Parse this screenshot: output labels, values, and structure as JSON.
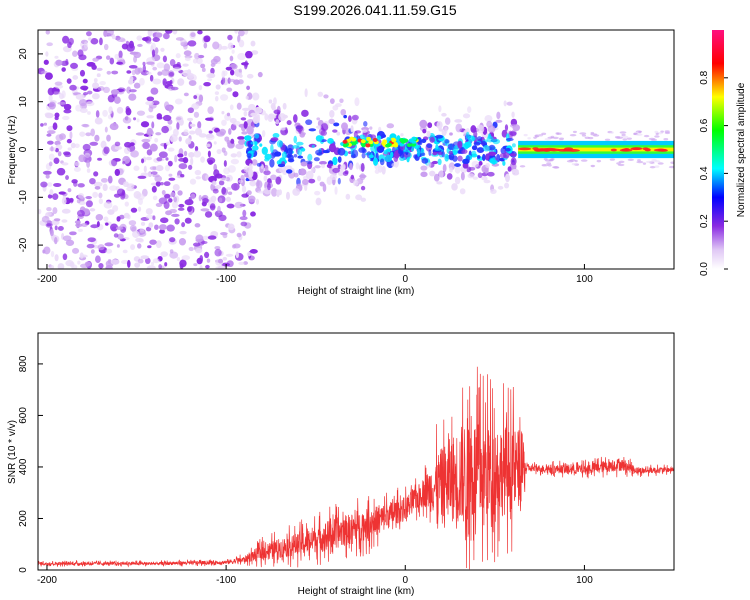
{
  "title": "S199.2026.041.11.59.G15",
  "chart_data": [
    {
      "type": "heatmap",
      "name": "spectrogram",
      "xlabel": "Height of straight line (km)",
      "ylabel": "Frequency (Hz)",
      "xlim": [
        -205,
        150
      ],
      "ylim": [
        -25,
        25
      ],
      "x_ticks": [
        -200,
        -100,
        0,
        100
      ],
      "y_ticks": [
        -20,
        -10,
        0,
        10,
        20
      ],
      "colorbar": {
        "label": "Normalized spectral amplitude",
        "range": [
          0,
          1
        ],
        "ticks": [
          "0.0",
          "0.2",
          "0.4",
          "0.6",
          "0.8"
        ],
        "colors": [
          "#ffffff",
          "#e0c8f5",
          "#8a2be2",
          "#0000ff",
          "#00ffff",
          "#00ff00",
          "#ffff00",
          "#ff0000",
          "#ff1080"
        ]
      },
      "features": [
        {
          "x_range": [
            -205,
            -90
          ],
          "freq_spread": 25,
          "amplitude": 0.15,
          "description": "diffuse noise"
        },
        {
          "x_range": [
            -90,
            60
          ],
          "freq_spread": 8,
          "amplitude": 0.35,
          "description": "scattered signal"
        },
        {
          "x_range": [
            65,
            150
          ],
          "center_freq": 0,
          "amplitude": 0.95,
          "description": "strong narrow line"
        }
      ]
    },
    {
      "type": "line",
      "name": "snr",
      "xlabel": "Height of straight line (km)",
      "ylabel": "SNR (10 * v/v)",
      "xlim": [
        -205,
        150
      ],
      "ylim": [
        0,
        920
      ],
      "x_ticks": [
        -200,
        -100,
        0,
        100
      ],
      "y_ticks": [
        0,
        200,
        400,
        600,
        800
      ],
      "color": "#ee3333",
      "trend": [
        {
          "x": -205,
          "mean": 25,
          "amp": 12
        },
        {
          "x": -140,
          "mean": 25,
          "amp": 12
        },
        {
          "x": -100,
          "mean": 30,
          "amp": 15
        },
        {
          "x": -90,
          "mean": 40,
          "amp": 25
        },
        {
          "x": -80,
          "mean": 70,
          "amp": 60
        },
        {
          "x": -60,
          "mean": 100,
          "amp": 90
        },
        {
          "x": -40,
          "mean": 140,
          "amp": 120
        },
        {
          "x": -20,
          "mean": 180,
          "amp": 120
        },
        {
          "x": 0,
          "mean": 240,
          "amp": 90
        },
        {
          "x": 10,
          "mean": 300,
          "amp": 100
        },
        {
          "x": 18,
          "mean": 330,
          "amp": 250
        },
        {
          "x": 35,
          "mean": 380,
          "amp": 430
        },
        {
          "x": 50,
          "mean": 390,
          "amp": 380
        },
        {
          "x": 65,
          "mean": 390,
          "amp": 300
        },
        {
          "x": 68,
          "mean": 395,
          "amp": 25
        },
        {
          "x": 100,
          "mean": 390,
          "amp": 40
        },
        {
          "x": 120,
          "mean": 410,
          "amp": 50
        },
        {
          "x": 130,
          "mean": 385,
          "amp": 25
        },
        {
          "x": 150,
          "mean": 390,
          "amp": 20
        }
      ]
    }
  ]
}
